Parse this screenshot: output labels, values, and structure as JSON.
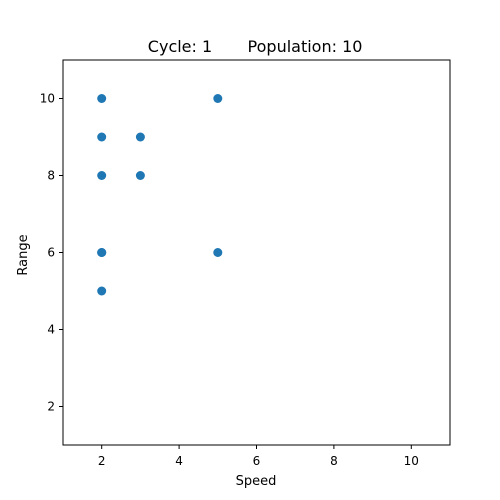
{
  "chart_data": {
    "type": "scatter",
    "title_cycle": "Cycle: 1",
    "title_population": "Population: 10",
    "xlabel": "Speed",
    "ylabel": "Range",
    "xlim": [
      1,
      11
    ],
    "ylim": [
      1,
      11
    ],
    "xticks": [
      2,
      4,
      6,
      8,
      10
    ],
    "yticks": [
      2,
      4,
      6,
      8,
      10
    ],
    "grid": false,
    "marker_color": "#1f77b4",
    "points": [
      {
        "x": 2,
        "y": 10
      },
      {
        "x": 2,
        "y": 9
      },
      {
        "x": 2,
        "y": 8
      },
      {
        "x": 2,
        "y": 6
      },
      {
        "x": 2,
        "y": 6
      },
      {
        "x": 2,
        "y": 5
      },
      {
        "x": 3,
        "y": 9
      },
      {
        "x": 3,
        "y": 8
      },
      {
        "x": 5,
        "y": 10
      },
      {
        "x": 5,
        "y": 6
      }
    ]
  }
}
